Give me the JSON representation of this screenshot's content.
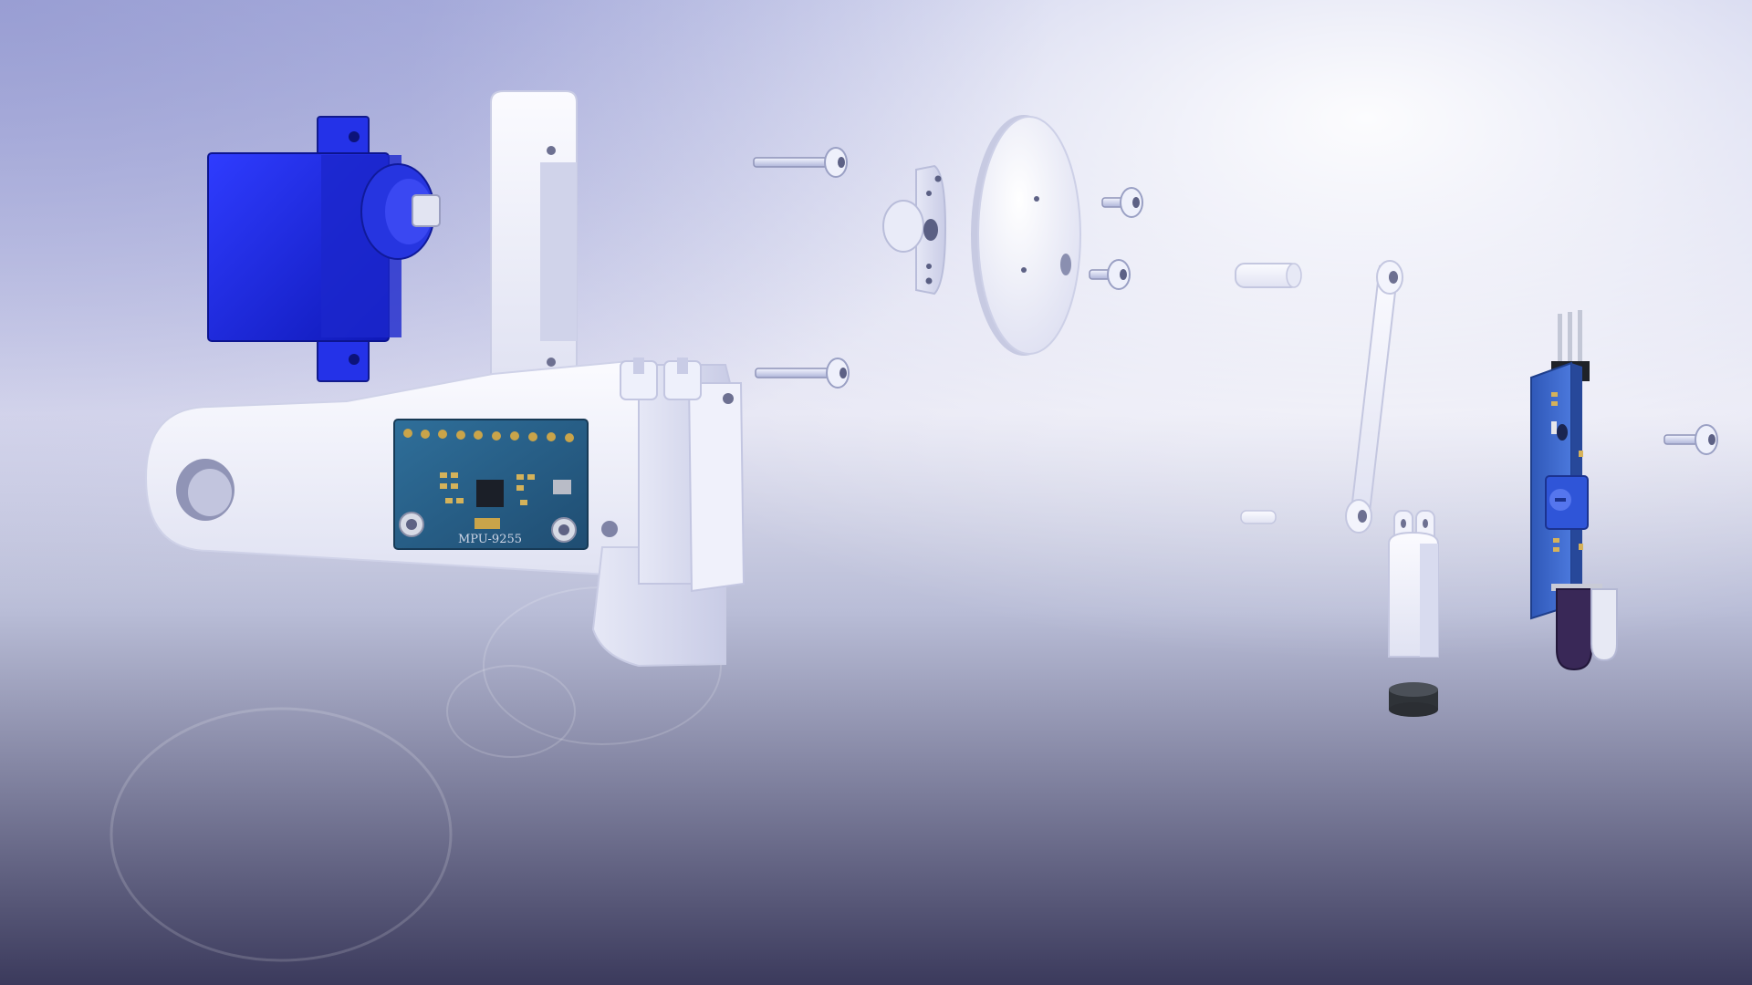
{
  "scene": {
    "type": "exploded-assembly-render",
    "parts": [
      "servo-motor",
      "main-bracket",
      "imu-board",
      "screw",
      "servo-horn",
      "disc",
      "short-screw",
      "pin",
      "link-arm",
      "cylinder-housing",
      "magnet-disc",
      "ir-sensor-board"
    ],
    "colors": {
      "servo": "#1a2ae0",
      "plastic": "#f2f3fb",
      "pcb": "#2c5d8a",
      "sensor_pcb": "#3a63c8",
      "ir_led": "#3a2a5a",
      "magnet": "#3a3e44"
    }
  },
  "imu": {
    "label": "MPU-9255"
  }
}
